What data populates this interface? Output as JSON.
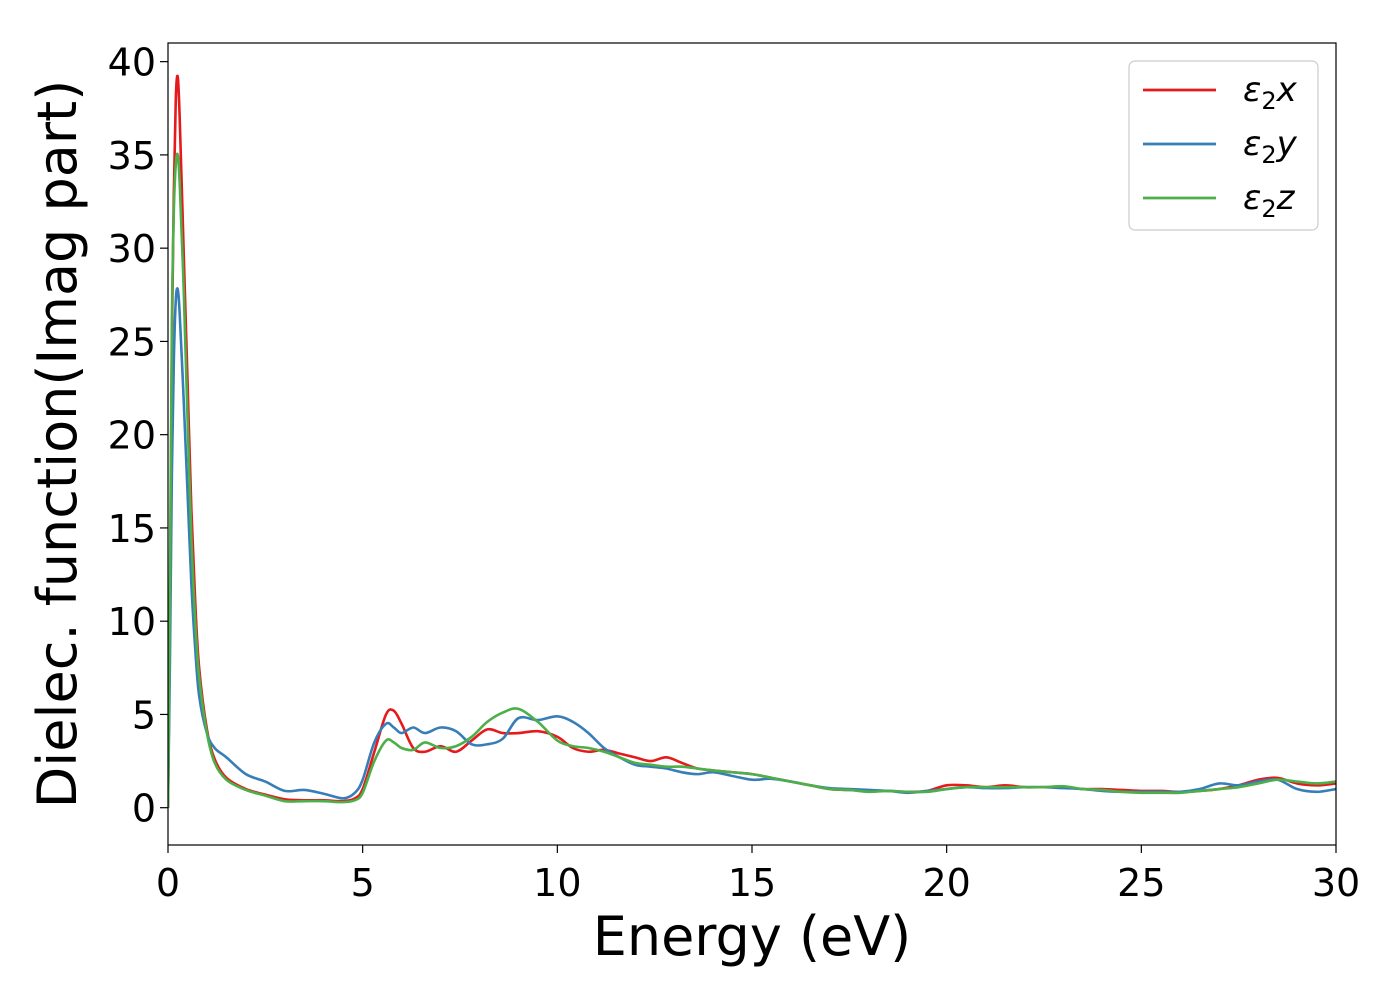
{
  "chart_data": {
    "type": "line",
    "title": "",
    "xlabel": "Energy (eV)",
    "ylabel": "Dielec. function(Imag part)",
    "xlim": [
      0,
      30
    ],
    "ylim": [
      -2,
      41
    ],
    "xticks": [
      0,
      5,
      10,
      15,
      20,
      25,
      30
    ],
    "xtick_labels": [
      "0",
      "5",
      "10",
      "15",
      "20",
      "25",
      "30"
    ],
    "yticks": [
      0,
      5,
      10,
      15,
      20,
      25,
      30,
      35,
      40
    ],
    "ytick_labels": [
      "0",
      "5",
      "10",
      "15",
      "20",
      "25",
      "30",
      "35",
      "40"
    ],
    "grid": false,
    "legend_position": "top-right",
    "series": [
      {
        "name": "ε2x",
        "legend": {
          "base": "ε",
          "sub": "2",
          "suffix": "x"
        },
        "color": "#e41a1c",
        "x": [
          0,
          0.05,
          0.1,
          0.15,
          0.2,
          0.25,
          0.3,
          0.4,
          0.5,
          0.6,
          0.7,
          0.8,
          1.0,
          1.2,
          1.5,
          2.0,
          2.5,
          3.0,
          3.5,
          4.0,
          4.5,
          4.8,
          5.0,
          5.3,
          5.6,
          5.8,
          6.0,
          6.3,
          6.6,
          7.0,
          7.4,
          7.8,
          8.2,
          8.6,
          9.0,
          9.5,
          10.0,
          10.4,
          10.8,
          11.2,
          11.6,
          12.0,
          12.4,
          12.8,
          13.2,
          13.6,
          14.0,
          14.5,
          15.0,
          15.5,
          16.0,
          16.5,
          17.0,
          17.5,
          18.0,
          18.5,
          19.0,
          19.5,
          20.0,
          20.5,
          21.0,
          21.5,
          22.0,
          22.5,
          23.0,
          23.5,
          24.0,
          24.5,
          25.0,
          25.5,
          26.0,
          26.5,
          27.0,
          27.5,
          28.0,
          28.5,
          29.0,
          29.5,
          30.0
        ],
        "y": [
          0,
          10,
          25,
          33,
          38,
          39.2,
          37,
          30,
          23,
          16,
          11,
          7.5,
          4.2,
          2.6,
          1.6,
          1.0,
          0.7,
          0.45,
          0.4,
          0.4,
          0.35,
          0.5,
          1.0,
          3.0,
          5.0,
          5.2,
          4.5,
          3.2,
          3.0,
          3.3,
          3.0,
          3.6,
          4.2,
          4.0,
          4.0,
          4.1,
          3.8,
          3.2,
          3.0,
          3.1,
          2.9,
          2.7,
          2.5,
          2.7,
          2.4,
          2.1,
          2.0,
          1.9,
          1.8,
          1.6,
          1.4,
          1.2,
          1.0,
          0.95,
          0.9,
          0.9,
          0.85,
          0.9,
          1.2,
          1.2,
          1.1,
          1.2,
          1.1,
          1.1,
          1.1,
          1.0,
          1.0,
          0.95,
          0.9,
          0.9,
          0.85,
          0.9,
          1.0,
          1.2,
          1.5,
          1.6,
          1.3,
          1.2,
          1.3
        ]
      },
      {
        "name": "ε2y",
        "legend": {
          "base": "ε",
          "sub": "2",
          "suffix": "y"
        },
        "color": "#377eb8",
        "x": [
          0,
          0.05,
          0.1,
          0.15,
          0.2,
          0.25,
          0.3,
          0.4,
          0.5,
          0.6,
          0.7,
          0.8,
          1.0,
          1.2,
          1.5,
          2.0,
          2.5,
          3.0,
          3.5,
          4.0,
          4.5,
          4.8,
          5.0,
          5.3,
          5.6,
          5.8,
          6.0,
          6.3,
          6.6,
          7.0,
          7.4,
          7.8,
          8.2,
          8.6,
          9.0,
          9.5,
          10.0,
          10.4,
          10.8,
          11.2,
          11.6,
          12.0,
          12.4,
          12.8,
          13.2,
          13.6,
          14.0,
          14.5,
          15.0,
          15.5,
          16.0,
          16.5,
          17.0,
          17.5,
          18.0,
          18.5,
          19.0,
          19.5,
          20.0,
          20.5,
          21.0,
          21.5,
          22.0,
          22.5,
          23.0,
          23.5,
          24.0,
          24.5,
          25.0,
          25.5,
          26.0,
          26.5,
          27.0,
          27.5,
          28.0,
          28.5,
          29.0,
          29.5,
          30.0
        ],
        "y": [
          0,
          8,
          18,
          24,
          27.2,
          27.8,
          26.5,
          22,
          17,
          12,
          8.5,
          6.0,
          4.0,
          3.2,
          2.7,
          1.8,
          1.4,
          0.9,
          0.95,
          0.75,
          0.5,
          0.8,
          1.5,
          3.5,
          4.5,
          4.3,
          4.0,
          4.3,
          4.0,
          4.3,
          4.1,
          3.4,
          3.4,
          3.7,
          4.8,
          4.7,
          4.9,
          4.6,
          4.0,
          3.2,
          2.7,
          2.3,
          2.2,
          2.1,
          1.9,
          1.8,
          1.9,
          1.7,
          1.5,
          1.55,
          1.4,
          1.2,
          1.05,
          1.0,
          0.95,
          0.9,
          0.8,
          0.9,
          1.0,
          1.1,
          1.05,
          1.05,
          1.1,
          1.1,
          1.05,
          1.0,
          0.9,
          0.85,
          0.85,
          0.85,
          0.85,
          1.0,
          1.3,
          1.2,
          1.4,
          1.5,
          1.0,
          0.85,
          1.0
        ]
      },
      {
        "name": "ε2z",
        "legend": {
          "base": "ε",
          "sub": "2",
          "suffix": "z"
        },
        "color": "#4daf4a",
        "x": [
          0,
          0.05,
          0.1,
          0.15,
          0.2,
          0.25,
          0.3,
          0.4,
          0.5,
          0.6,
          0.7,
          0.8,
          1.0,
          1.2,
          1.5,
          2.0,
          2.5,
          3.0,
          3.5,
          4.0,
          4.5,
          4.8,
          5.0,
          5.3,
          5.6,
          5.8,
          6.0,
          6.3,
          6.6,
          7.0,
          7.4,
          7.8,
          8.2,
          8.6,
          9.0,
          9.5,
          10.0,
          10.4,
          10.8,
          11.2,
          11.6,
          12.0,
          12.4,
          12.8,
          13.2,
          13.6,
          14.0,
          14.5,
          15.0,
          15.5,
          16.0,
          16.5,
          17.0,
          17.5,
          18.0,
          18.5,
          19.0,
          19.5,
          20.0,
          20.5,
          21.0,
          21.5,
          22.0,
          22.5,
          23.0,
          23.5,
          24.0,
          24.5,
          25.0,
          25.5,
          26.0,
          26.5,
          27.0,
          27.5,
          28.0,
          28.5,
          29.0,
          29.5,
          30.0
        ],
        "y": [
          0,
          12,
          26,
          32,
          34.5,
          35.0,
          33.5,
          28,
          21,
          14.5,
          10,
          7.0,
          4.0,
          2.4,
          1.5,
          0.95,
          0.65,
          0.35,
          0.35,
          0.35,
          0.3,
          0.4,
          0.8,
          2.5,
          3.6,
          3.5,
          3.2,
          3.1,
          3.5,
          3.2,
          3.3,
          3.8,
          4.6,
          5.1,
          5.3,
          4.6,
          3.6,
          3.3,
          3.2,
          3.0,
          2.7,
          2.4,
          2.3,
          2.2,
          2.2,
          2.1,
          2.0,
          1.9,
          1.8,
          1.6,
          1.4,
          1.2,
          1.0,
          0.95,
          0.85,
          0.9,
          0.85,
          0.85,
          1.0,
          1.1,
          1.1,
          1.1,
          1.1,
          1.1,
          1.15,
          1.0,
          0.95,
          0.85,
          0.8,
          0.8,
          0.8,
          0.9,
          1.0,
          1.1,
          1.3,
          1.5,
          1.4,
          1.3,
          1.4
        ]
      }
    ]
  }
}
